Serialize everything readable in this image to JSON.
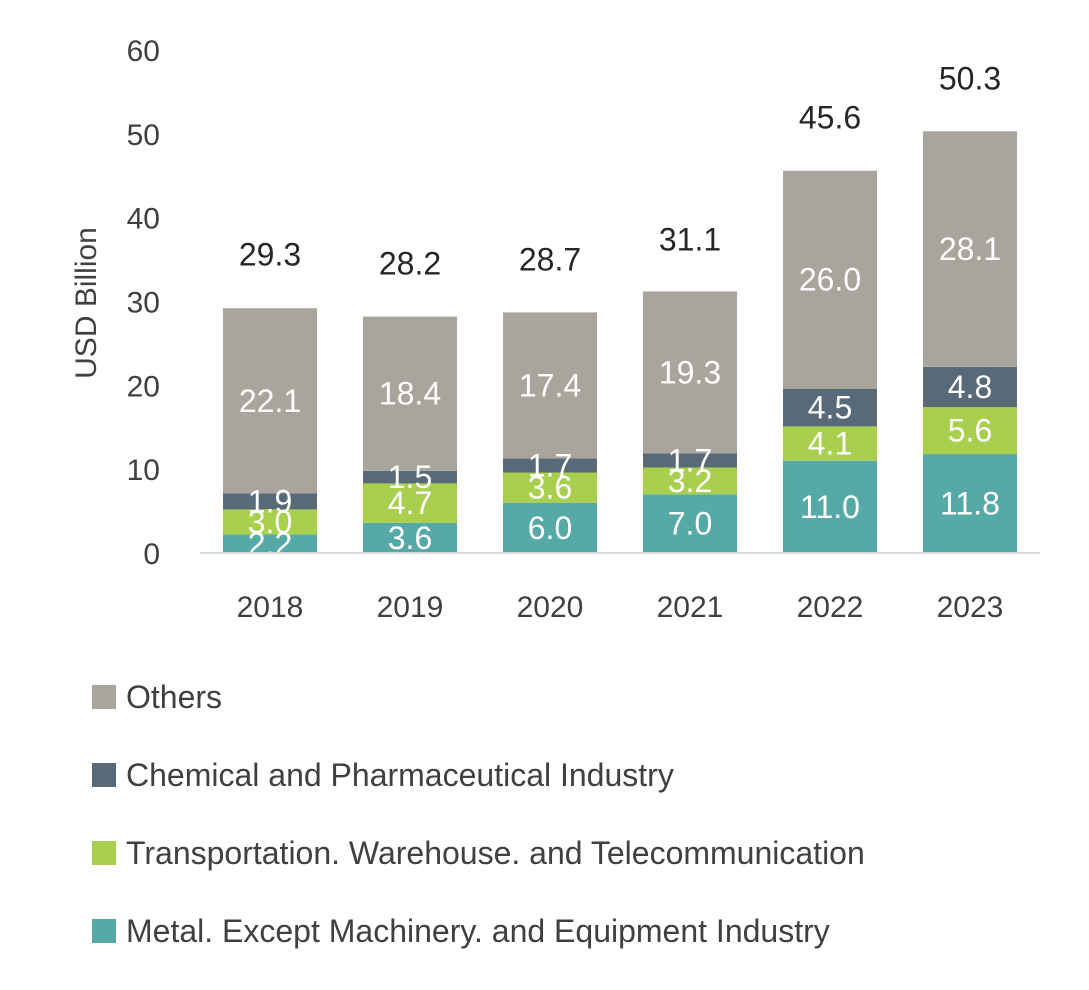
{
  "chart_data": {
    "type": "bar",
    "stacked": true,
    "categories": [
      "2018",
      "2019",
      "2020",
      "2021",
      "2022",
      "2023"
    ],
    "series": [
      {
        "name": "Metal. Except Machinery. and Equipment Industry",
        "color": "#55aaa8",
        "values": [
          2.2,
          3.6,
          6.0,
          7.0,
          11.0,
          11.8
        ],
        "labels": [
          "2.2",
          "3.6",
          "6.0",
          "7.0",
          "11.0",
          "11.8"
        ]
      },
      {
        "name": "Transportation. Warehouse. and Telecommunication",
        "color": "#a8cf4e",
        "values": [
          3.0,
          4.7,
          3.6,
          3.2,
          4.1,
          5.6
        ],
        "labels": [
          "3.0",
          "4.7",
          "3.6",
          "3.2",
          "4.1",
          "5.6"
        ]
      },
      {
        "name": "Chemical and Pharmaceutical Industry",
        "color": "#586a78",
        "values": [
          1.9,
          1.5,
          1.7,
          1.7,
          4.5,
          4.8
        ],
        "labels": [
          "1.9",
          "1.5",
          "1.7",
          "1.7",
          "4.5",
          "4.8"
        ]
      },
      {
        "name": "Others",
        "color": "#a9a49c",
        "values": [
          22.1,
          18.4,
          17.4,
          19.3,
          26.0,
          28.1
        ],
        "labels": [
          "22.1",
          "18.4",
          "17.4",
          "19.3",
          "26.0",
          "28.1"
        ]
      }
    ],
    "totals": [
      "29.3",
      "28.2",
      "28.7",
      "31.1",
      "45.6",
      "50.3"
    ],
    "totals_values": [
      29.3,
      28.2,
      28.7,
      31.1,
      45.6,
      50.3
    ],
    "title": "",
    "xlabel": "",
    "ylabel": "USD Billion",
    "ylim": [
      0,
      60
    ],
    "yticks": [
      "0",
      "10",
      "20",
      "30",
      "40",
      "50",
      "60"
    ],
    "ytick_values": [
      0,
      10,
      20,
      30,
      40,
      50,
      60
    ],
    "grid": false,
    "legend_position": "bottom",
    "legend_order": [
      3,
      2,
      1,
      0
    ]
  }
}
